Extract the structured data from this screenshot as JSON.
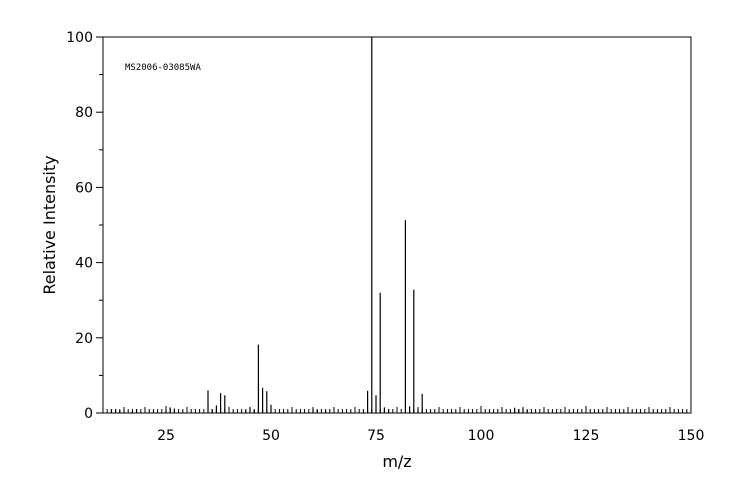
{
  "chart_data": {
    "type": "bar",
    "annotation": "MS2006-03085WA",
    "xlabel": "m/z",
    "ylabel": "Relative Intensity",
    "xlim": [
      10,
      150
    ],
    "ylim": [
      0,
      100
    ],
    "xticks": [
      25,
      50,
      75,
      100,
      125,
      150
    ],
    "yticks": [
      0,
      20,
      40,
      60,
      80,
      100
    ],
    "peaks": [
      {
        "mz": 12,
        "intensity": 0.9
      },
      {
        "mz": 13,
        "intensity": 1.0
      },
      {
        "mz": 14,
        "intensity": 0.7
      },
      {
        "mz": 15,
        "intensity": 0.5
      },
      {
        "mz": 17,
        "intensity": 0.5
      },
      {
        "mz": 18,
        "intensity": 1.0
      },
      {
        "mz": 25,
        "intensity": 0.8
      },
      {
        "mz": 26,
        "intensity": 1.5
      },
      {
        "mz": 27,
        "intensity": 1.2
      },
      {
        "mz": 35,
        "intensity": 6.0
      },
      {
        "mz": 36,
        "intensity": 1.0
      },
      {
        "mz": 37,
        "intensity": 2.0
      },
      {
        "mz": 38,
        "intensity": 5.3
      },
      {
        "mz": 39,
        "intensity": 4.7
      },
      {
        "mz": 44,
        "intensity": 0.8
      },
      {
        "mz": 45,
        "intensity": 1.5
      },
      {
        "mz": 46,
        "intensity": 0.8
      },
      {
        "mz": 47,
        "intensity": 18.2
      },
      {
        "mz": 48,
        "intensity": 6.7
      },
      {
        "mz": 49,
        "intensity": 5.8
      },
      {
        "mz": 50,
        "intensity": 2.2
      },
      {
        "mz": 60,
        "intensity": 1.0
      },
      {
        "mz": 61,
        "intensity": 0.8
      },
      {
        "mz": 63,
        "intensity": 0.8
      },
      {
        "mz": 73,
        "intensity": 5.9
      },
      {
        "mz": 74,
        "intensity": 100.0
      },
      {
        "mz": 75,
        "intensity": 4.7
      },
      {
        "mz": 76,
        "intensity": 32.0
      },
      {
        "mz": 77,
        "intensity": 1.5
      },
      {
        "mz": 78,
        "intensity": 1.0
      },
      {
        "mz": 82,
        "intensity": 51.3
      },
      {
        "mz": 83,
        "intensity": 1.8
      },
      {
        "mz": 84,
        "intensity": 32.8
      },
      {
        "mz": 85,
        "intensity": 1.0
      },
      {
        "mz": 86,
        "intensity": 5.1
      },
      {
        "mz": 108,
        "intensity": 1.4
      },
      {
        "mz": 109,
        "intensity": 1.0
      },
      {
        "mz": 110,
        "intensity": 1.2
      },
      {
        "mz": 111,
        "intensity": 0.8
      }
    ]
  }
}
